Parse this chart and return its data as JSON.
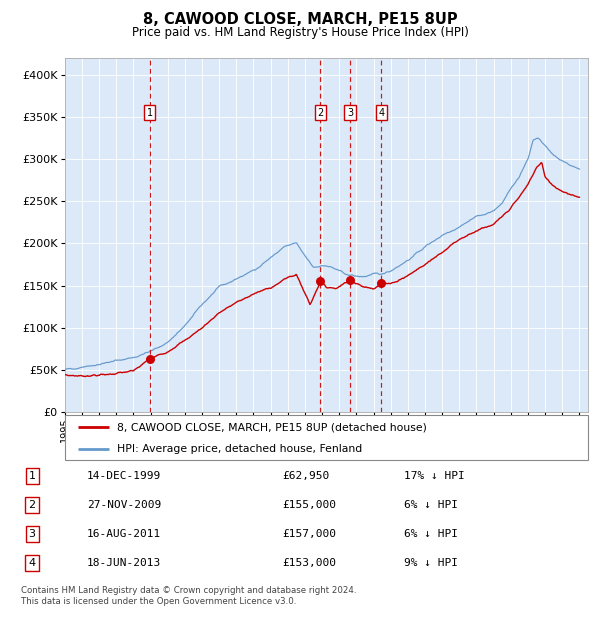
{
  "title": "8, CAWOOD CLOSE, MARCH, PE15 8UP",
  "subtitle": "Price paid vs. HM Land Registry's House Price Index (HPI)",
  "footer_line1": "Contains HM Land Registry data © Crown copyright and database right 2024.",
  "footer_line2": "This data is licensed under the Open Government Licence v3.0.",
  "legend_label_red": "8, CAWOOD CLOSE, MARCH, PE15 8UP (detached house)",
  "legend_label_blue": "HPI: Average price, detached house, Fenland",
  "transactions": [
    {
      "num": 1,
      "date": "14-DEC-1999",
      "price": 62950,
      "price_str": "£62,950",
      "hpi_diff": "17% ↓ HPI",
      "year": 1999.95
    },
    {
      "num": 2,
      "date": "27-NOV-2009",
      "price": 155000,
      "price_str": "£155,000",
      "hpi_diff": "6% ↓ HPI",
      "year": 2009.9
    },
    {
      "num": 3,
      "date": "16-AUG-2011",
      "price": 157000,
      "price_str": "£157,000",
      "hpi_diff": "6% ↓ HPI",
      "year": 2011.625
    },
    {
      "num": 4,
      "date": "18-JUN-2013",
      "price": 153000,
      "price_str": "£153,000",
      "hpi_diff": "9% ↓ HPI",
      "year": 2013.46
    }
  ],
  "plot_bg_color": "#dce9f8",
  "red_line_color": "#cc0000",
  "blue_line_color": "#6699cc",
  "dashed_line_color": "#cc0000",
  "box_edge_color": "#cc0000",
  "ylim": [
    0,
    420000
  ],
  "xlim_start": 1995,
  "xlim_end": 2025.5,
  "yticks": [
    0,
    50000,
    100000,
    150000,
    200000,
    250000,
    300000,
    350000,
    400000
  ],
  "xticks": [
    1995,
    1996,
    1997,
    1998,
    1999,
    2000,
    2001,
    2002,
    2003,
    2004,
    2005,
    2006,
    2007,
    2008,
    2009,
    2010,
    2011,
    2012,
    2013,
    2014,
    2015,
    2016,
    2017,
    2018,
    2019,
    2020,
    2021,
    2022,
    2023,
    2024,
    2025
  ],
  "hpi_anchors": [
    [
      1995.0,
      50000
    ],
    [
      1996.0,
      54000
    ],
    [
      1997.0,
      57000
    ],
    [
      1998.0,
      61000
    ],
    [
      1999.0,
      65000
    ],
    [
      2000.0,
      72000
    ],
    [
      2001.0,
      83000
    ],
    [
      2002.0,
      102000
    ],
    [
      2003.0,
      128000
    ],
    [
      2004.0,
      148000
    ],
    [
      2005.0,
      158000
    ],
    [
      2006.0,
      168000
    ],
    [
      2007.0,
      183000
    ],
    [
      2007.8,
      196000
    ],
    [
      2008.5,
      200000
    ],
    [
      2009.0,
      185000
    ],
    [
      2009.5,
      172000
    ],
    [
      2010.0,
      174000
    ],
    [
      2010.5,
      172000
    ],
    [
      2011.0,
      167000
    ],
    [
      2011.5,
      163000
    ],
    [
      2012.0,
      161000
    ],
    [
      2012.5,
      161000
    ],
    [
      2013.0,
      163000
    ],
    [
      2013.5,
      164000
    ],
    [
      2014.0,
      168000
    ],
    [
      2015.0,
      180000
    ],
    [
      2016.0,
      196000
    ],
    [
      2017.0,
      210000
    ],
    [
      2018.0,
      220000
    ],
    [
      2019.0,
      232000
    ],
    [
      2020.0,
      238000
    ],
    [
      2020.5,
      248000
    ],
    [
      2021.0,
      265000
    ],
    [
      2021.5,
      278000
    ],
    [
      2022.0,
      300000
    ],
    [
      2022.3,
      323000
    ],
    [
      2022.6,
      326000
    ],
    [
      2023.0,
      315000
    ],
    [
      2023.5,
      305000
    ],
    [
      2024.0,
      298000
    ],
    [
      2024.5,
      292000
    ],
    [
      2025.0,
      288000
    ]
  ],
  "red_anchors": [
    [
      1995.0,
      44000
    ],
    [
      1996.0,
      43000
    ],
    [
      1997.0,
      44000
    ],
    [
      1998.0,
      46000
    ],
    [
      1999.0,
      49000
    ],
    [
      1999.95,
      62950
    ],
    [
      2000.5,
      68000
    ],
    [
      2001.0,
      72000
    ],
    [
      2002.0,
      85000
    ],
    [
      2003.0,
      100000
    ],
    [
      2004.0,
      118000
    ],
    [
      2005.0,
      130000
    ],
    [
      2006.0,
      140000
    ],
    [
      2007.0,
      148000
    ],
    [
      2007.5,
      153000
    ],
    [
      2008.0,
      160000
    ],
    [
      2008.5,
      163000
    ],
    [
      2009.3,
      128000
    ],
    [
      2009.9,
      155000
    ],
    [
      2010.3,
      148000
    ],
    [
      2010.8,
      147000
    ],
    [
      2011.0,
      149000
    ],
    [
      2011.625,
      157000
    ],
    [
      2012.0,
      152000
    ],
    [
      2012.5,
      148000
    ],
    [
      2013.0,
      147000
    ],
    [
      2013.46,
      153000
    ],
    [
      2014.0,
      152000
    ],
    [
      2015.0,
      162000
    ],
    [
      2016.0,
      175000
    ],
    [
      2017.0,
      190000
    ],
    [
      2018.0,
      205000
    ],
    [
      2019.0,
      215000
    ],
    [
      2020.0,
      222000
    ],
    [
      2021.0,
      242000
    ],
    [
      2021.5,
      255000
    ],
    [
      2022.0,
      270000
    ],
    [
      2022.5,
      290000
    ],
    [
      2022.8,
      296000
    ],
    [
      2023.0,
      278000
    ],
    [
      2023.5,
      268000
    ],
    [
      2024.0,
      262000
    ],
    [
      2024.5,
      258000
    ],
    [
      2025.0,
      255000
    ]
  ]
}
